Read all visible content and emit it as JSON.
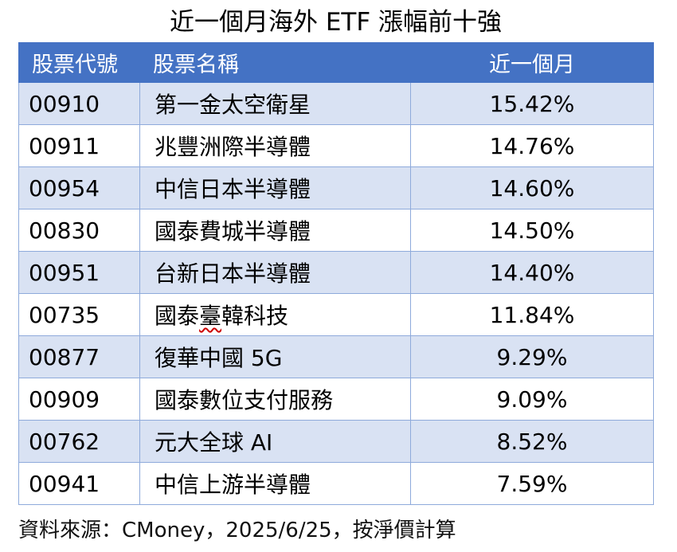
{
  "chart_data": {
    "type": "table",
    "title": "近一個月海外 ETF 漲幅前十強",
    "columns": [
      "股票代號",
      "股票名稱",
      "近一個月"
    ],
    "rows": [
      [
        "00910",
        "第一金太空衛星",
        "15.42%"
      ],
      [
        "00911",
        "兆豐洲際半導體",
        "14.76%"
      ],
      [
        "00954",
        "中信日本半導體",
        "14.60%"
      ],
      [
        "00830",
        "國泰費城半導體",
        "14.50%"
      ],
      [
        "00951",
        "台新日本半導體",
        "14.40%"
      ],
      [
        "00735",
        "國泰臺韓科技",
        "11.84%"
      ],
      [
        "00877",
        "復華中國 5G",
        "9.29%"
      ],
      [
        "00909",
        "國泰數位支付服務",
        "9.09%"
      ],
      [
        "00762",
        "元大全球 AI",
        "8.52%"
      ],
      [
        "00941",
        "中信上游半導體",
        "7.59%"
      ]
    ],
    "change_values_pct": [
      15.42,
      14.76,
      14.6,
      14.5,
      14.4,
      11.84,
      9.29,
      9.09,
      8.52,
      7.59
    ],
    "source_note": "資料來源：CMoney，2025/6/25，按淨價計算",
    "layout": {
      "banded_rows": true,
      "band_start": "first_data_row",
      "header_align": "left-left-center",
      "value_align": "center"
    }
  },
  "spellcheck": {
    "row_code": "00735",
    "substring": "臺"
  },
  "colors": {
    "header_bg": "#4472C4",
    "header_text": "#FFFFFF",
    "band_row_bg": "#D9E2F3",
    "row_bg": "#FFFFFF",
    "border": "#8EAADB",
    "title_text": "#000000",
    "spellcheck_underline": "#CC0000"
  }
}
